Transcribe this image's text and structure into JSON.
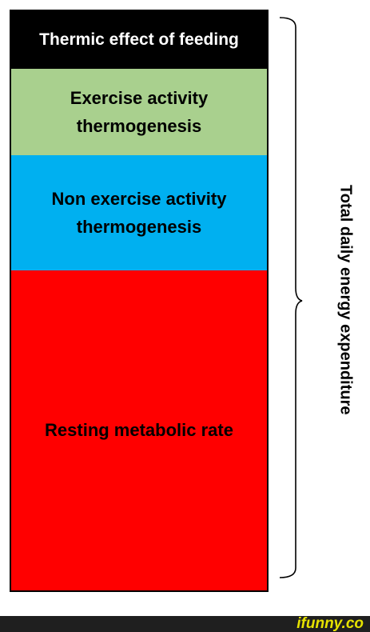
{
  "segments": [
    {
      "label": "Thermic effect of feeding",
      "color": "#000000",
      "text_color": "#ffffff"
    },
    {
      "label": "Exercise activity thermogenesis",
      "color": "#a9d08e",
      "text_color": "#000000"
    },
    {
      "label": "Non exercise activity thermogenesis",
      "color": "#00b0f0",
      "text_color": "#000000"
    },
    {
      "label": "Resting metabolic rate",
      "color": "#ff0000",
      "text_color": "#000000"
    }
  ],
  "total_label": "Total daily energy expenditure",
  "watermark": "ifunny.co",
  "footer_color": "#1f1f1f",
  "watermark_color": "#e6e200"
}
